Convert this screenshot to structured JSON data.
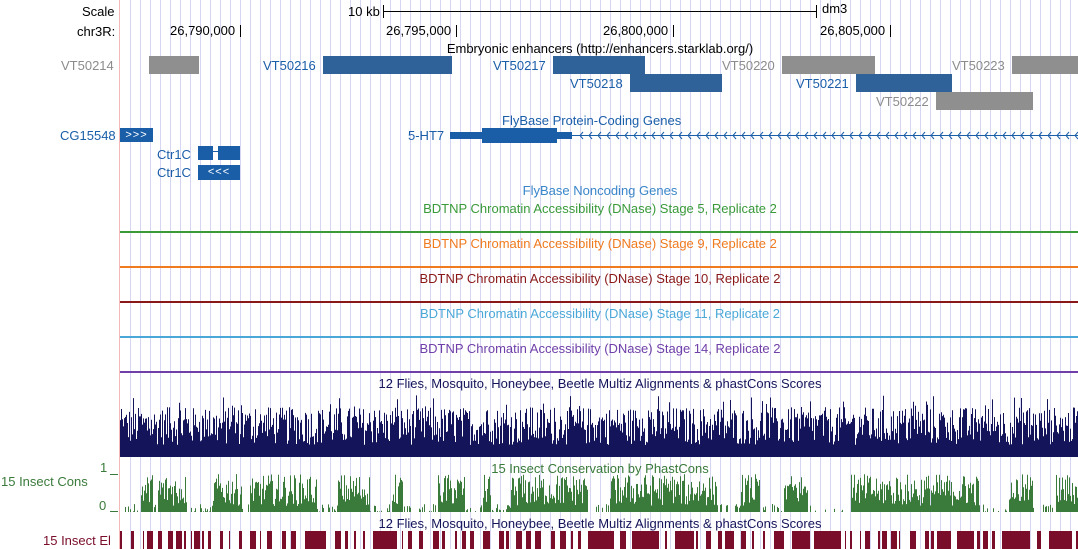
{
  "scale": {
    "label": "Scale",
    "bar_label": "10 kb",
    "assembly": "dm3"
  },
  "chrom": {
    "label": "chr3R:",
    "positions": [
      "26,790,000",
      "26,795,000",
      "26,800,000",
      "26,805,000"
    ]
  },
  "enhancers": {
    "title": "Embryonic enhancers (http://enhancers.starklab.org/)",
    "items": [
      {
        "id": "VT50214",
        "active": false
      },
      {
        "id": "VT50216",
        "active": true
      },
      {
        "id": "VT50217",
        "active": true
      },
      {
        "id": "VT50218",
        "active": true
      },
      {
        "id": "VT50220",
        "active": false
      },
      {
        "id": "VT50221",
        "active": true
      },
      {
        "id": "VT50222",
        "active": false
      },
      {
        "id": "VT50223",
        "active": false
      }
    ]
  },
  "genes": {
    "title": "FlyBase Protein-Coding Genes",
    "items": [
      "CG15548",
      "5-HT7",
      "Ctr1C",
      "Ctr1C"
    ]
  },
  "noncoding": {
    "title": "FlyBase Noncoding Genes"
  },
  "dnase_tracks": [
    {
      "title": "BDTNP Chromatin Accessibility (DNase) Stage 5, Replicate 2",
      "color": "#3a9a3a"
    },
    {
      "title": "BDTNP Chromatin Accessibility (DNase) Stage 9, Replicate 2",
      "color": "#f07a1e"
    },
    {
      "title": "BDTNP Chromatin Accessibility (DNase) Stage 10, Replicate 2",
      "color": "#8a1818"
    },
    {
      "title": "BDTNP Chromatin Accessibility (DNase) Stage 11, Replicate 2",
      "color": "#4aa8d8"
    },
    {
      "title": "BDTNP Chromatin Accessibility (DNase) Stage 14, Replicate 2",
      "color": "#7040a8"
    }
  ],
  "multiz": {
    "title": "12 Flies, Mosquito, Honeybee, Beetle Multiz Alignments & phastCons Scores",
    "color": "#14145a"
  },
  "insect_cons": {
    "label": "15 Insect Cons",
    "title": "15 Insect Conservation by PhastCons",
    "axis_max": "1",
    "axis_min": "0",
    "color": "#3a7a3a"
  },
  "insect_el": {
    "label": "15 Insect El",
    "title": "12 Flies, Mosquito, Honeybee, Beetle Multiz Alignments & phastCons Scores",
    "color": "#7a0d2a"
  },
  "colors": {
    "gene_blue": "#1a5ea8",
    "enhancer_active": "#2e6299",
    "enhancer_inactive": "#8f8f8f",
    "gridline": "#d6d6f2"
  }
}
